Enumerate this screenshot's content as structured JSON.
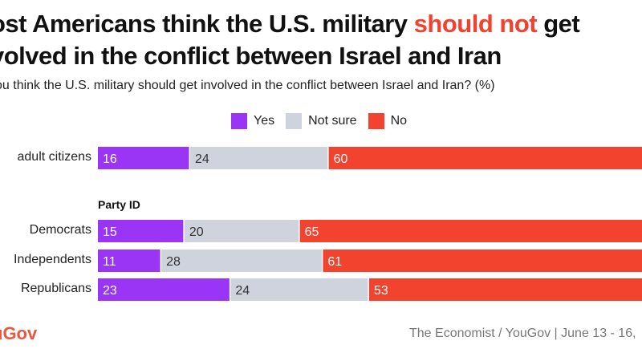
{
  "title": {
    "pre": "ost Americans think the U.S. military ",
    "highlight": "should not",
    "post": " get",
    "line2": "volved in the conflict between Israel and Iran"
  },
  "subtitle": "ou think the U.S. military should get involved in the conflict between Israel and Iran? (%)",
  "footer": {
    "brand": "uGov",
    "source": "The Economist / YouGov | June 13 - 16,"
  },
  "chart_data": {
    "type": "bar",
    "orientation": "horizontal",
    "stacked": true,
    "xlim": [
      0,
      100
    ],
    "legend": [
      "Yes",
      "Not sure",
      "No"
    ],
    "legend_placement": "top",
    "colors": {
      "Yes": "#9a35f5",
      "Not sure": "#cfd3dd",
      "No": "#f2432e"
    },
    "group_label": "Party ID",
    "categories": [
      "adult citizens",
      "Democrats",
      "Independents",
      "Republicans"
    ],
    "series": [
      {
        "name": "Yes",
        "values": [
          16,
          15,
          11,
          23
        ]
      },
      {
        "name": "Not sure",
        "values": [
          24,
          20,
          28,
          24
        ]
      },
      {
        "name": "No",
        "values": [
          60,
          65,
          61,
          53
        ]
      }
    ]
  }
}
